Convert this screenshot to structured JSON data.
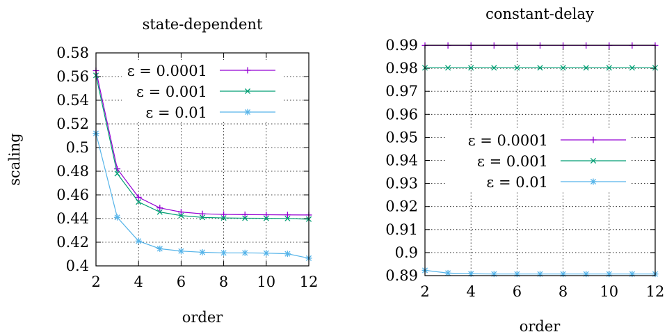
{
  "colors": {
    "eps_0001": "#9400d3",
    "eps_001": "#009e73",
    "eps_01": "#56b4e9"
  },
  "chart_data": [
    {
      "type": "line",
      "title": "state-dependent",
      "xlabel": "order",
      "ylabel": "scaling",
      "xlim": [
        2,
        12
      ],
      "ylim": [
        0.4,
        0.58
      ],
      "xticks": [
        "2",
        "4",
        "6",
        "8",
        "10",
        "12"
      ],
      "yticks": [
        "0.4",
        "0.42",
        "0.44",
        "0.46",
        "0.48",
        "0.5",
        "0.52",
        "0.54",
        "0.56",
        "0.58"
      ],
      "grid": true,
      "legend_position": "top-right",
      "x": [
        2,
        3,
        4,
        5,
        6,
        7,
        8,
        9,
        10,
        11,
        12
      ],
      "series": [
        {
          "name": "ε = 0.0001",
          "marker": "plus",
          "values": [
            0.565,
            0.482,
            0.458,
            0.449,
            0.4455,
            0.444,
            0.4435,
            0.4433,
            0.4432,
            0.4431,
            0.443
          ]
        },
        {
          "name": "ε = 0.001",
          "marker": "cross",
          "values": [
            0.561,
            0.478,
            0.454,
            0.4455,
            0.4425,
            0.441,
            0.4405,
            0.4403,
            0.4402,
            0.44,
            0.4395
          ]
        },
        {
          "name": "ε = 0.01",
          "marker": "star",
          "values": [
            0.512,
            0.441,
            0.421,
            0.4145,
            0.4125,
            0.4115,
            0.411,
            0.411,
            0.4108,
            0.4102,
            0.4065
          ]
        }
      ]
    },
    {
      "type": "line",
      "title": "constant-delay",
      "xlabel": "order",
      "ylabel": "",
      "xlim": [
        2,
        12
      ],
      "ylim": [
        0.89,
        0.99
      ],
      "xticks": [
        "2",
        "4",
        "6",
        "8",
        "10",
        "12"
      ],
      "yticks": [
        "0.89",
        "0.9",
        "0.91",
        "0.92",
        "0.93",
        "0.94",
        "0.95",
        "0.96",
        "0.97",
        "0.98",
        "0.99"
      ],
      "grid": true,
      "legend_position": "center-right",
      "x": [
        2,
        3,
        4,
        5,
        6,
        7,
        8,
        9,
        10,
        11,
        12
      ],
      "series": [
        {
          "name": "ε = 0.0001",
          "marker": "plus",
          "values": [
            0.9899,
            0.9899,
            0.9899,
            0.9899,
            0.9899,
            0.9899,
            0.9899,
            0.9899,
            0.9899,
            0.9899,
            0.9899
          ]
        },
        {
          "name": "ε = 0.001",
          "marker": "cross",
          "values": [
            0.9802,
            0.9802,
            0.9802,
            0.9802,
            0.9802,
            0.9802,
            0.9802,
            0.9802,
            0.9802,
            0.9802,
            0.9802
          ]
        },
        {
          "name": "ε = 0.01",
          "marker": "star",
          "values": [
            0.8923,
            0.8911,
            0.8908,
            0.8907,
            0.8907,
            0.8907,
            0.8907,
            0.8907,
            0.8907,
            0.8907,
            0.8907
          ]
        }
      ]
    }
  ]
}
